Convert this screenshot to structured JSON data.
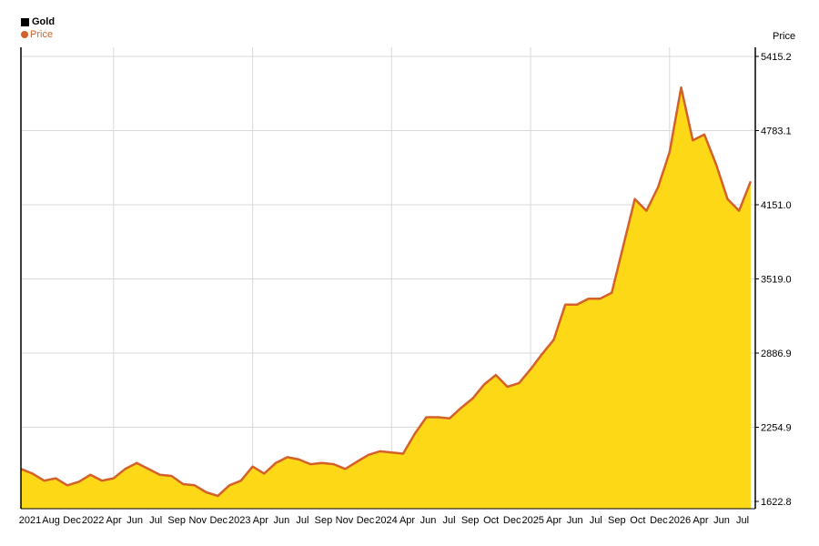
{
  "legend": {
    "title": "Gold",
    "series_label": "Price"
  },
  "y_axis_title": "Price",
  "colors": {
    "line": "#d4602a",
    "fill": "#fcd817",
    "grid": "#d9d9d9",
    "axis": "#000000"
  },
  "chart_data": {
    "type": "area",
    "title": "Gold",
    "ylabel": "Price",
    "grid": true,
    "legend_position": "top-left",
    "ylim": [
      1622.8,
      5500
    ],
    "yticks": [
      "5415.2",
      "4783.1",
      "4151.0",
      "3519.0",
      "2886.9",
      "2254.9",
      "1622.8"
    ],
    "xticks": [
      "2021",
      "Aug",
      "Dec",
      "2022",
      "Apr",
      "Jun",
      "Jul",
      "Sep",
      "Nov",
      "Dec",
      "2023",
      "Apr",
      "Jun",
      "Jul",
      "Sep",
      "Nov",
      "Dec",
      "2024",
      "Apr",
      "Jun",
      "Jul",
      "Sep",
      "Oct",
      "Dec",
      "2025",
      "Apr",
      "Jun",
      "Jul",
      "Sep",
      "Oct",
      "Dec",
      "2026",
      "Apr",
      "Jun",
      "Jul"
    ],
    "series": [
      {
        "name": "Price",
        "x": [
          "2021-05",
          "2021-06",
          "2021-07",
          "2021-08",
          "2021-09",
          "2021-10",
          "2021-11",
          "2021-12",
          "2022-01",
          "2022-02",
          "2022-03",
          "2022-04",
          "2022-05",
          "2022-06",
          "2022-07",
          "2022-08",
          "2022-09",
          "2022-10",
          "2022-11",
          "2022-12",
          "2023-01",
          "2023-02",
          "2023-03",
          "2023-04",
          "2023-05",
          "2023-06",
          "2023-07",
          "2023-08",
          "2023-09",
          "2023-10",
          "2023-11",
          "2023-12",
          "2024-01",
          "2024-02",
          "2024-03",
          "2024-04",
          "2024-05",
          "2024-06",
          "2024-07",
          "2024-08",
          "2024-09",
          "2024-10",
          "2024-11",
          "2024-12",
          "2025-01",
          "2025-02",
          "2025-03",
          "2025-04",
          "2025-05",
          "2025-06",
          "2025-07",
          "2025-08",
          "2025-09",
          "2025-10",
          "2025-11",
          "2025-12",
          "2026-01",
          "2026-02",
          "2026-03",
          "2026-04",
          "2026-05",
          "2026-06",
          "2026-07",
          "2026-08"
        ],
        "values": [
          1900,
          1860,
          1800,
          1820,
          1760,
          1790,
          1850,
          1800,
          1820,
          1900,
          1950,
          1900,
          1850,
          1840,
          1770,
          1760,
          1700,
          1670,
          1760,
          1800,
          1920,
          1860,
          1950,
          2000,
          1980,
          1940,
          1950,
          1940,
          1900,
          1960,
          2020,
          2050,
          2040,
          2030,
          2200,
          2340,
          2340,
          2330,
          2420,
          2500,
          2620,
          2700,
          2600,
          2630,
          2750,
          2880,
          3000,
          3300,
          3300,
          3350,
          3350,
          3400,
          3800,
          4200,
          4100,
          4300,
          4600,
          5150,
          4700,
          4750,
          4500,
          4200,
          4100,
          4350
        ]
      }
    ]
  }
}
